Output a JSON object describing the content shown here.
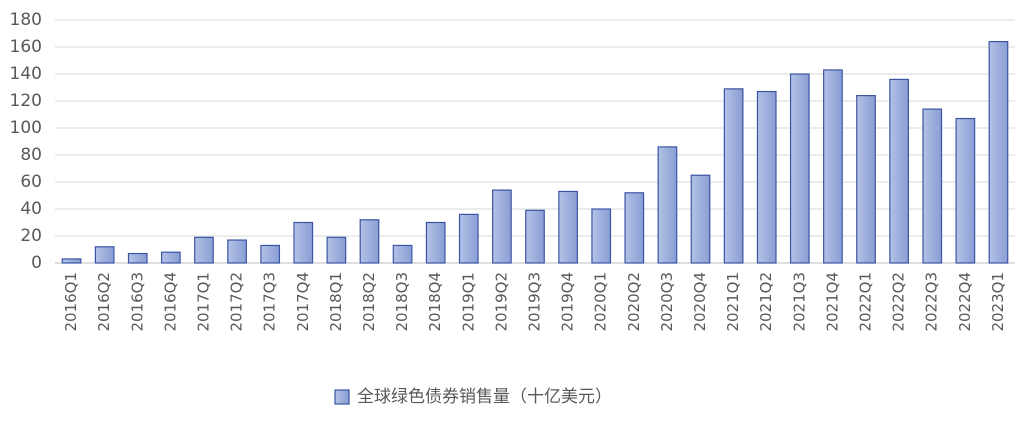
{
  "chart_data": {
    "type": "bar",
    "categories": [
      "2016Q1",
      "2016Q2",
      "2016Q3",
      "2016Q4",
      "2017Q1",
      "2017Q2",
      "2017Q3",
      "2017Q4",
      "2018Q1",
      "2018Q2",
      "2018Q3",
      "2018Q4",
      "2019Q1",
      "2019Q2",
      "2019Q3",
      "2019Q4",
      "2020Q1",
      "2020Q2",
      "2020Q3",
      "2020Q4",
      "2021Q1",
      "2021Q2",
      "2021Q3",
      "2021Q4",
      "2022Q1",
      "2022Q2",
      "2022Q3",
      "2022Q4",
      "2023Q1"
    ],
    "series": [
      {
        "name": "全球绿色债券销售量（十亿美元）",
        "color": "#9dafdc",
        "values": [
          3,
          12,
          7,
          8,
          19,
          17,
          13,
          30,
          19,
          32,
          13,
          30,
          36,
          54,
          39,
          53,
          40,
          52,
          86,
          65,
          129,
          127,
          140,
          143,
          124,
          136,
          114,
          107,
          164
        ]
      }
    ],
    "ylim": [
      0,
      180
    ],
    "yticks": [
      0,
      20,
      40,
      60,
      80,
      100,
      120,
      140,
      160,
      180
    ],
    "grid": true
  }
}
